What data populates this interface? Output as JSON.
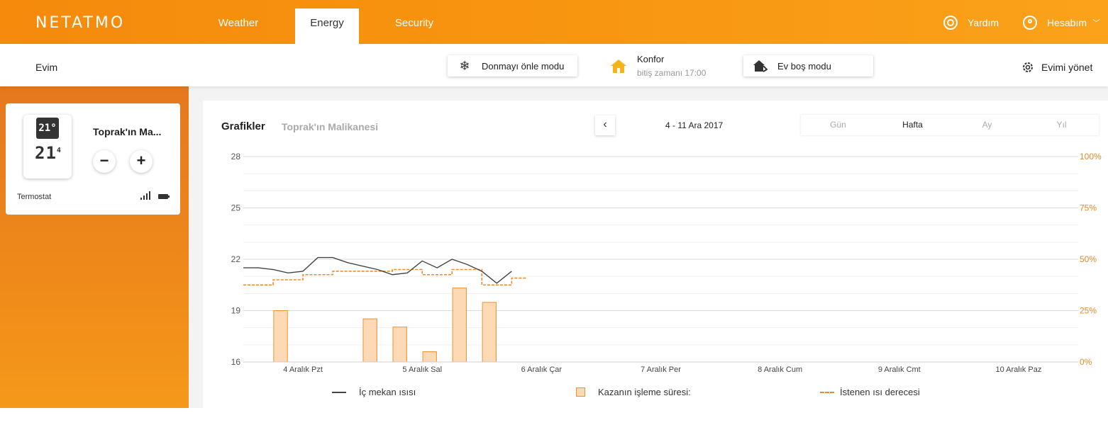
{
  "app": {
    "logo": "NETATMO"
  },
  "nav": {
    "tabs": [
      {
        "label": "Weather"
      },
      {
        "label": "Energy",
        "active": true
      },
      {
        "label": "Security"
      }
    ],
    "help_label": "Yardım",
    "account_label": "Hesabım"
  },
  "subbar": {
    "home_name": "Evim",
    "frost_mode_label": "Donmayı önle modu",
    "comfort_title": "Konfor",
    "comfort_end": "bitiş zamanı 17:00",
    "away_mode_label": "Ev boş modu",
    "manage_label": "Evimi yönet"
  },
  "device": {
    "set_temp": "21°",
    "current_temp": "21",
    "current_temp_decimal": "4",
    "name": "Toprak'ın Ma...",
    "minus": "−",
    "plus": "+",
    "type": "Termostat"
  },
  "graph": {
    "title": "Grafikler",
    "subtitle": "Toprak'ın Malikanesi",
    "date_range": "4 - 11 Ara 2017",
    "periods": [
      "Gün",
      "Hafta",
      "Ay",
      "Yıl"
    ],
    "active_period": "Hafta"
  },
  "chart_data": {
    "type": "line",
    "x_categories": [
      "4 Aralık Pzt",
      "5 Aralık Sal",
      "6 Aralık Çar",
      "7 Aralık Per",
      "8 Aralık Cum",
      "9 Aralık Cmt",
      "10 Aralık Paz"
    ],
    "x_range_days": [
      0,
      7
    ],
    "y_left": {
      "ticks": [
        28,
        25,
        22,
        19,
        16
      ],
      "range": [
        16,
        28
      ]
    },
    "y_right": {
      "ticks": [
        "100%",
        "75%",
        "50%",
        "25%",
        "0%"
      ],
      "range": [
        0,
        100
      ]
    },
    "grid": true,
    "colors": {
      "indoor": "#444444",
      "boiler_fill": "#fdd9b5",
      "boiler_stroke": "#f0912f",
      "setpoint": "#f08a2a",
      "right_axis": "#e08a2a"
    },
    "series": [
      {
        "name": "İç mekan ısısı",
        "axis": "left",
        "x": [
          0,
          0.125,
          0.25,
          0.375,
          0.5,
          0.625,
          0.75,
          0.875,
          1.0,
          1.125,
          1.25,
          1.375,
          1.5,
          1.625,
          1.75,
          1.875,
          2.0,
          2.125,
          2.25
        ],
        "y": [
          21.5,
          21.5,
          21.4,
          21.2,
          21.3,
          22.1,
          22.1,
          21.8,
          21.6,
          21.4,
          21.1,
          21.2,
          21.9,
          21.5,
          22.0,
          21.7,
          21.3,
          20.6,
          21.3
        ]
      },
      {
        "name": "İstenen ısı derecesi",
        "axis": "left",
        "x": [
          0,
          0.25,
          0.5,
          0.75,
          1.0,
          1.25,
          1.5,
          1.75,
          2.0,
          2.25
        ],
        "y": [
          20.5,
          20.8,
          21.1,
          21.3,
          21.3,
          21.4,
          21.1,
          21.4,
          20.5,
          20.9
        ]
      },
      {
        "name": "Kazanın işleme süresi:",
        "type": "bar",
        "axis": "right",
        "x": [
          0.25,
          1.0,
          1.25,
          1.5,
          1.75,
          2.0
        ],
        "y": [
          25,
          21,
          17,
          5,
          36,
          29
        ]
      }
    ]
  }
}
